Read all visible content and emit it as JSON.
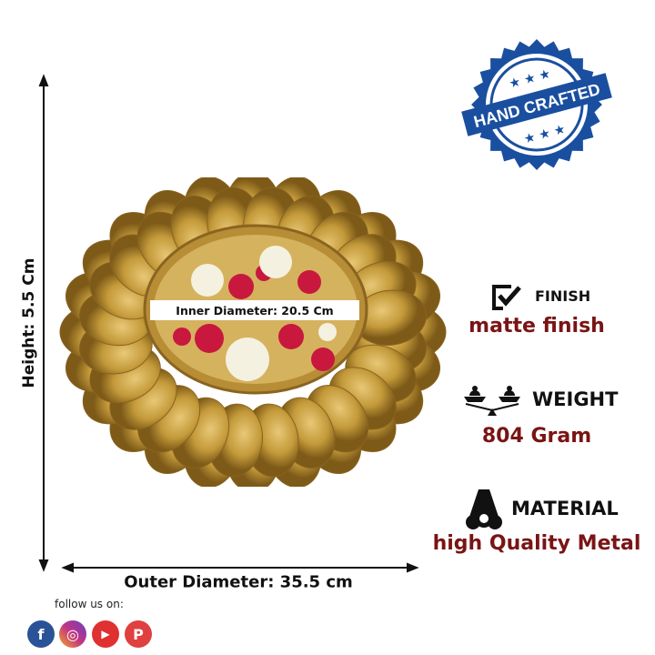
{
  "dimensions": {
    "height": "Height: 5.5 Cm",
    "outer_diameter": "Outer Diameter: 35.5 cm",
    "inner_diameter": "Inner Diameter: 20.5 Cm"
  },
  "badge": {
    "text": "HAND CRAFTED",
    "color": "#1a4fa0"
  },
  "features": [
    {
      "icon": "checkbox-icon",
      "title": "FINISH",
      "value": "matte finish"
    },
    {
      "icon": "scale-icon",
      "title": "WEIGHT",
      "value": "804 Gram"
    },
    {
      "icon": "metal-pipes-icon",
      "title": "MATERIAL",
      "value": "high Quality Metal"
    }
  ],
  "value_color": "#7a1414",
  "social": {
    "label": "follow us on:",
    "icons": [
      {
        "name": "facebook-icon",
        "glyph": "f",
        "color": "#2a5297"
      },
      {
        "name": "instagram-icon",
        "glyph": "◎",
        "color": "#c13584"
      },
      {
        "name": "youtube-icon",
        "glyph": "▶",
        "color": "#e03030"
      },
      {
        "name": "pinterest-icon",
        "glyph": "P",
        "color": "#e04040"
      }
    ]
  }
}
